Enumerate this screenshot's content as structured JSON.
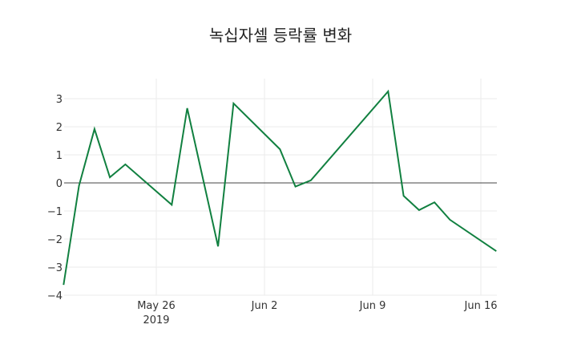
{
  "chart_data": {
    "type": "line",
    "title": "녹십자셀 등락률 변화",
    "xlabel": "",
    "ylabel": "",
    "x": [
      "2019-05-20",
      "2019-05-21",
      "2019-05-22",
      "2019-05-23",
      "2019-05-24",
      "2019-05-27",
      "2019-05-28",
      "2019-05-30",
      "2019-05-31",
      "2019-06-03",
      "2019-06-04",
      "2019-06-05",
      "2019-06-10",
      "2019-06-11",
      "2019-06-12",
      "2019-06-13",
      "2019-06-14",
      "2019-06-17"
    ],
    "series": [
      {
        "name": "등락률",
        "color": "#118040",
        "values": [
          -3.63,
          -0.1,
          1.92,
          0.2,
          0.66,
          -0.78,
          2.66,
          -2.26,
          2.83,
          1.2,
          -0.13,
          0.09,
          3.26,
          -0.46,
          -0.97,
          -0.69,
          -1.31,
          -2.43
        ]
      }
    ],
    "ylim": [
      -4,
      3.6
    ],
    "yticks": [
      3,
      2,
      1,
      0,
      -1,
      -2,
      -3,
      -4
    ],
    "ytick_labels": [
      "3",
      "2",
      "1",
      "0",
      "−1",
      "−2",
      "−3",
      "−4"
    ],
    "xticks": [
      {
        "date": "2019-05-26",
        "label": "May 26",
        "sublabel": "2019"
      },
      {
        "date": "2019-06-02",
        "label": "Jun 2",
        "sublabel": ""
      },
      {
        "date": "2019-06-09",
        "label": "Jun 9",
        "sublabel": ""
      },
      {
        "date": "2019-06-16",
        "label": "Jun 16",
        "sublabel": ""
      }
    ],
    "grid": true,
    "zero_line": true,
    "legend": "none"
  }
}
